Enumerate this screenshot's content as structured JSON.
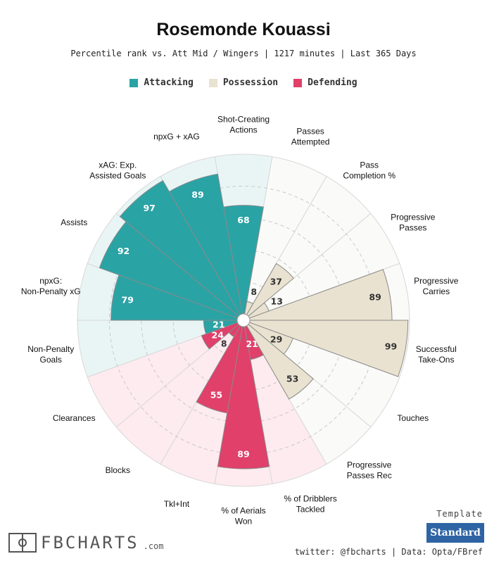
{
  "header": {
    "title": "Rosemonde Kouassi",
    "subtitle": "Percentile rank vs. Att Mid / Wingers | 1217 minutes | Last 365 Days"
  },
  "legend": {
    "attacking": "Attacking",
    "possession": "Possession",
    "defending": "Defending"
  },
  "colors": {
    "attacking": "#2aa3a5",
    "attacking_bg": "#e9f5f5",
    "possession": "#e9e2d0",
    "possession_bg": "#fafaf8",
    "defending": "#e0406a",
    "defending_bg": "#fdebef"
  },
  "chart_data": {
    "type": "radar-bar",
    "max": 100,
    "metrics": [
      {
        "label": "Shot-Creating Actions",
        "value": 68,
        "group": "attacking"
      },
      {
        "label": "Passes Attempted",
        "value": 8,
        "group": "possession"
      },
      {
        "label": "Pass Completion %",
        "value": 37,
        "group": "possession"
      },
      {
        "label": "Progressive Passes",
        "value": 13,
        "group": "possession"
      },
      {
        "label": "Progressive Carries",
        "value": 89,
        "group": "possession"
      },
      {
        "label": "Successful Take-Ons",
        "value": 99,
        "group": "possession"
      },
      {
        "label": "Touches",
        "value": 29,
        "group": "possession"
      },
      {
        "label": "Progressive Passes Rec",
        "value": 53,
        "group": "possession"
      },
      {
        "label": "% of Dribblers Tackled",
        "value": 21,
        "group": "defending"
      },
      {
        "label": "% of Aerials Won",
        "value": 89,
        "group": "defending"
      },
      {
        "label": "Tkl+Int",
        "value": 55,
        "group": "defending"
      },
      {
        "label": "Blocks",
        "value": 8,
        "group": "defending"
      },
      {
        "label": "Clearances",
        "value": 24,
        "group": "defending"
      },
      {
        "label": "Non-Penalty Goals",
        "value": 21,
        "group": "attacking"
      },
      {
        "label": "npxG: Non-Penalty xG",
        "value": 79,
        "group": "attacking"
      },
      {
        "label": "Assists",
        "value": 92,
        "group": "attacking"
      },
      {
        "label": "xAG: Exp. Assisted Goals",
        "value": 97,
        "group": "attacking"
      },
      {
        "label": "npxG + xAG",
        "value": 89,
        "group": "attacking"
      }
    ]
  },
  "footer": {
    "template_label": "Template",
    "template_button": "Standard",
    "logo_text": "FBCHARTS",
    "logo_suffix": ".com",
    "credits": "twitter: @fbcharts | Data: Opta/FBref"
  }
}
